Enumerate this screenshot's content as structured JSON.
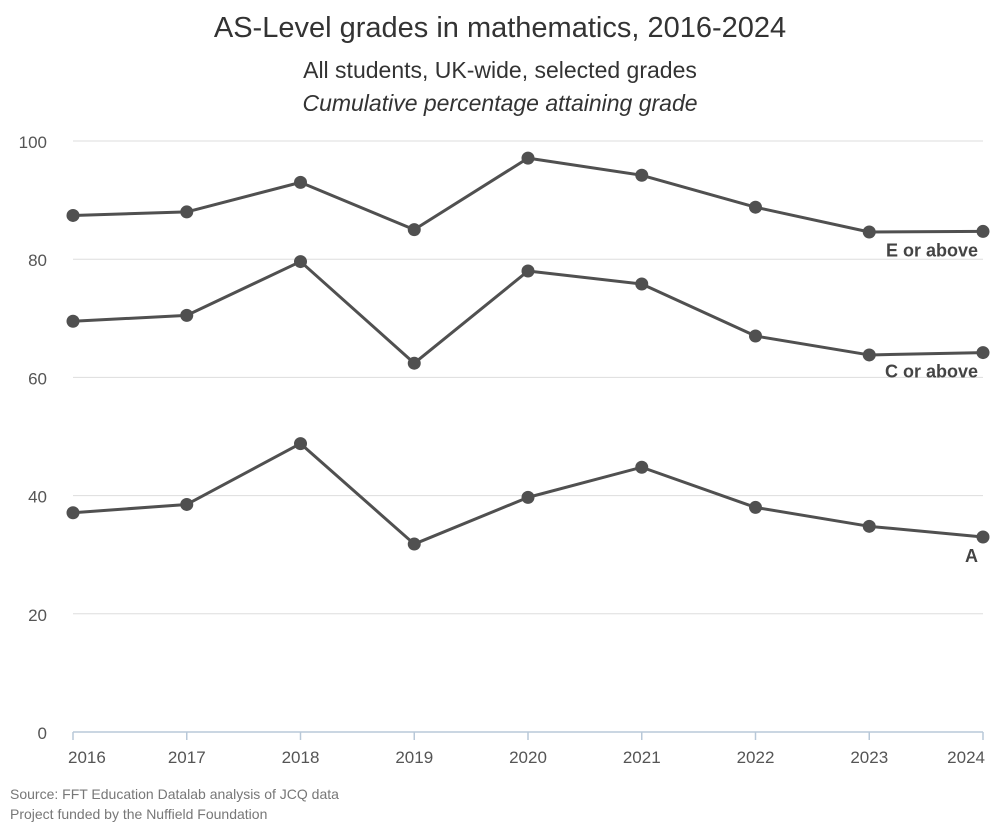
{
  "chart_data": {
    "type": "line",
    "title": "AS-Level grades in mathematics, 2016-2024",
    "subtitle": "All students, UK-wide, selected grades",
    "note": "Cumulative percentage attaining grade",
    "xlabel": "",
    "ylabel": "",
    "categories": [
      "2016",
      "2017",
      "2018",
      "2019",
      "2020",
      "2021",
      "2022",
      "2023",
      "2024"
    ],
    "ylim": [
      0,
      100
    ],
    "yticks": [
      0,
      20,
      40,
      60,
      80,
      100
    ],
    "grid": true,
    "series": [
      {
        "name": "E or above",
        "values": [
          87.4,
          88.0,
          93.0,
          85.0,
          97.1,
          94.2,
          88.8,
          84.6,
          84.7
        ]
      },
      {
        "name": "C or above",
        "values": [
          69.5,
          70.5,
          79.6,
          62.4,
          78.0,
          75.8,
          67.0,
          63.8,
          64.2
        ]
      },
      {
        "name": "A",
        "values": [
          37.1,
          38.5,
          48.8,
          31.8,
          39.7,
          44.8,
          38.0,
          34.8,
          33.0
        ]
      }
    ],
    "line_color": "#505050"
  },
  "footer": {
    "source": "Source: FFT Education Datalab analysis of JCQ data",
    "funding": "Project funded by the Nuffield Foundation"
  }
}
